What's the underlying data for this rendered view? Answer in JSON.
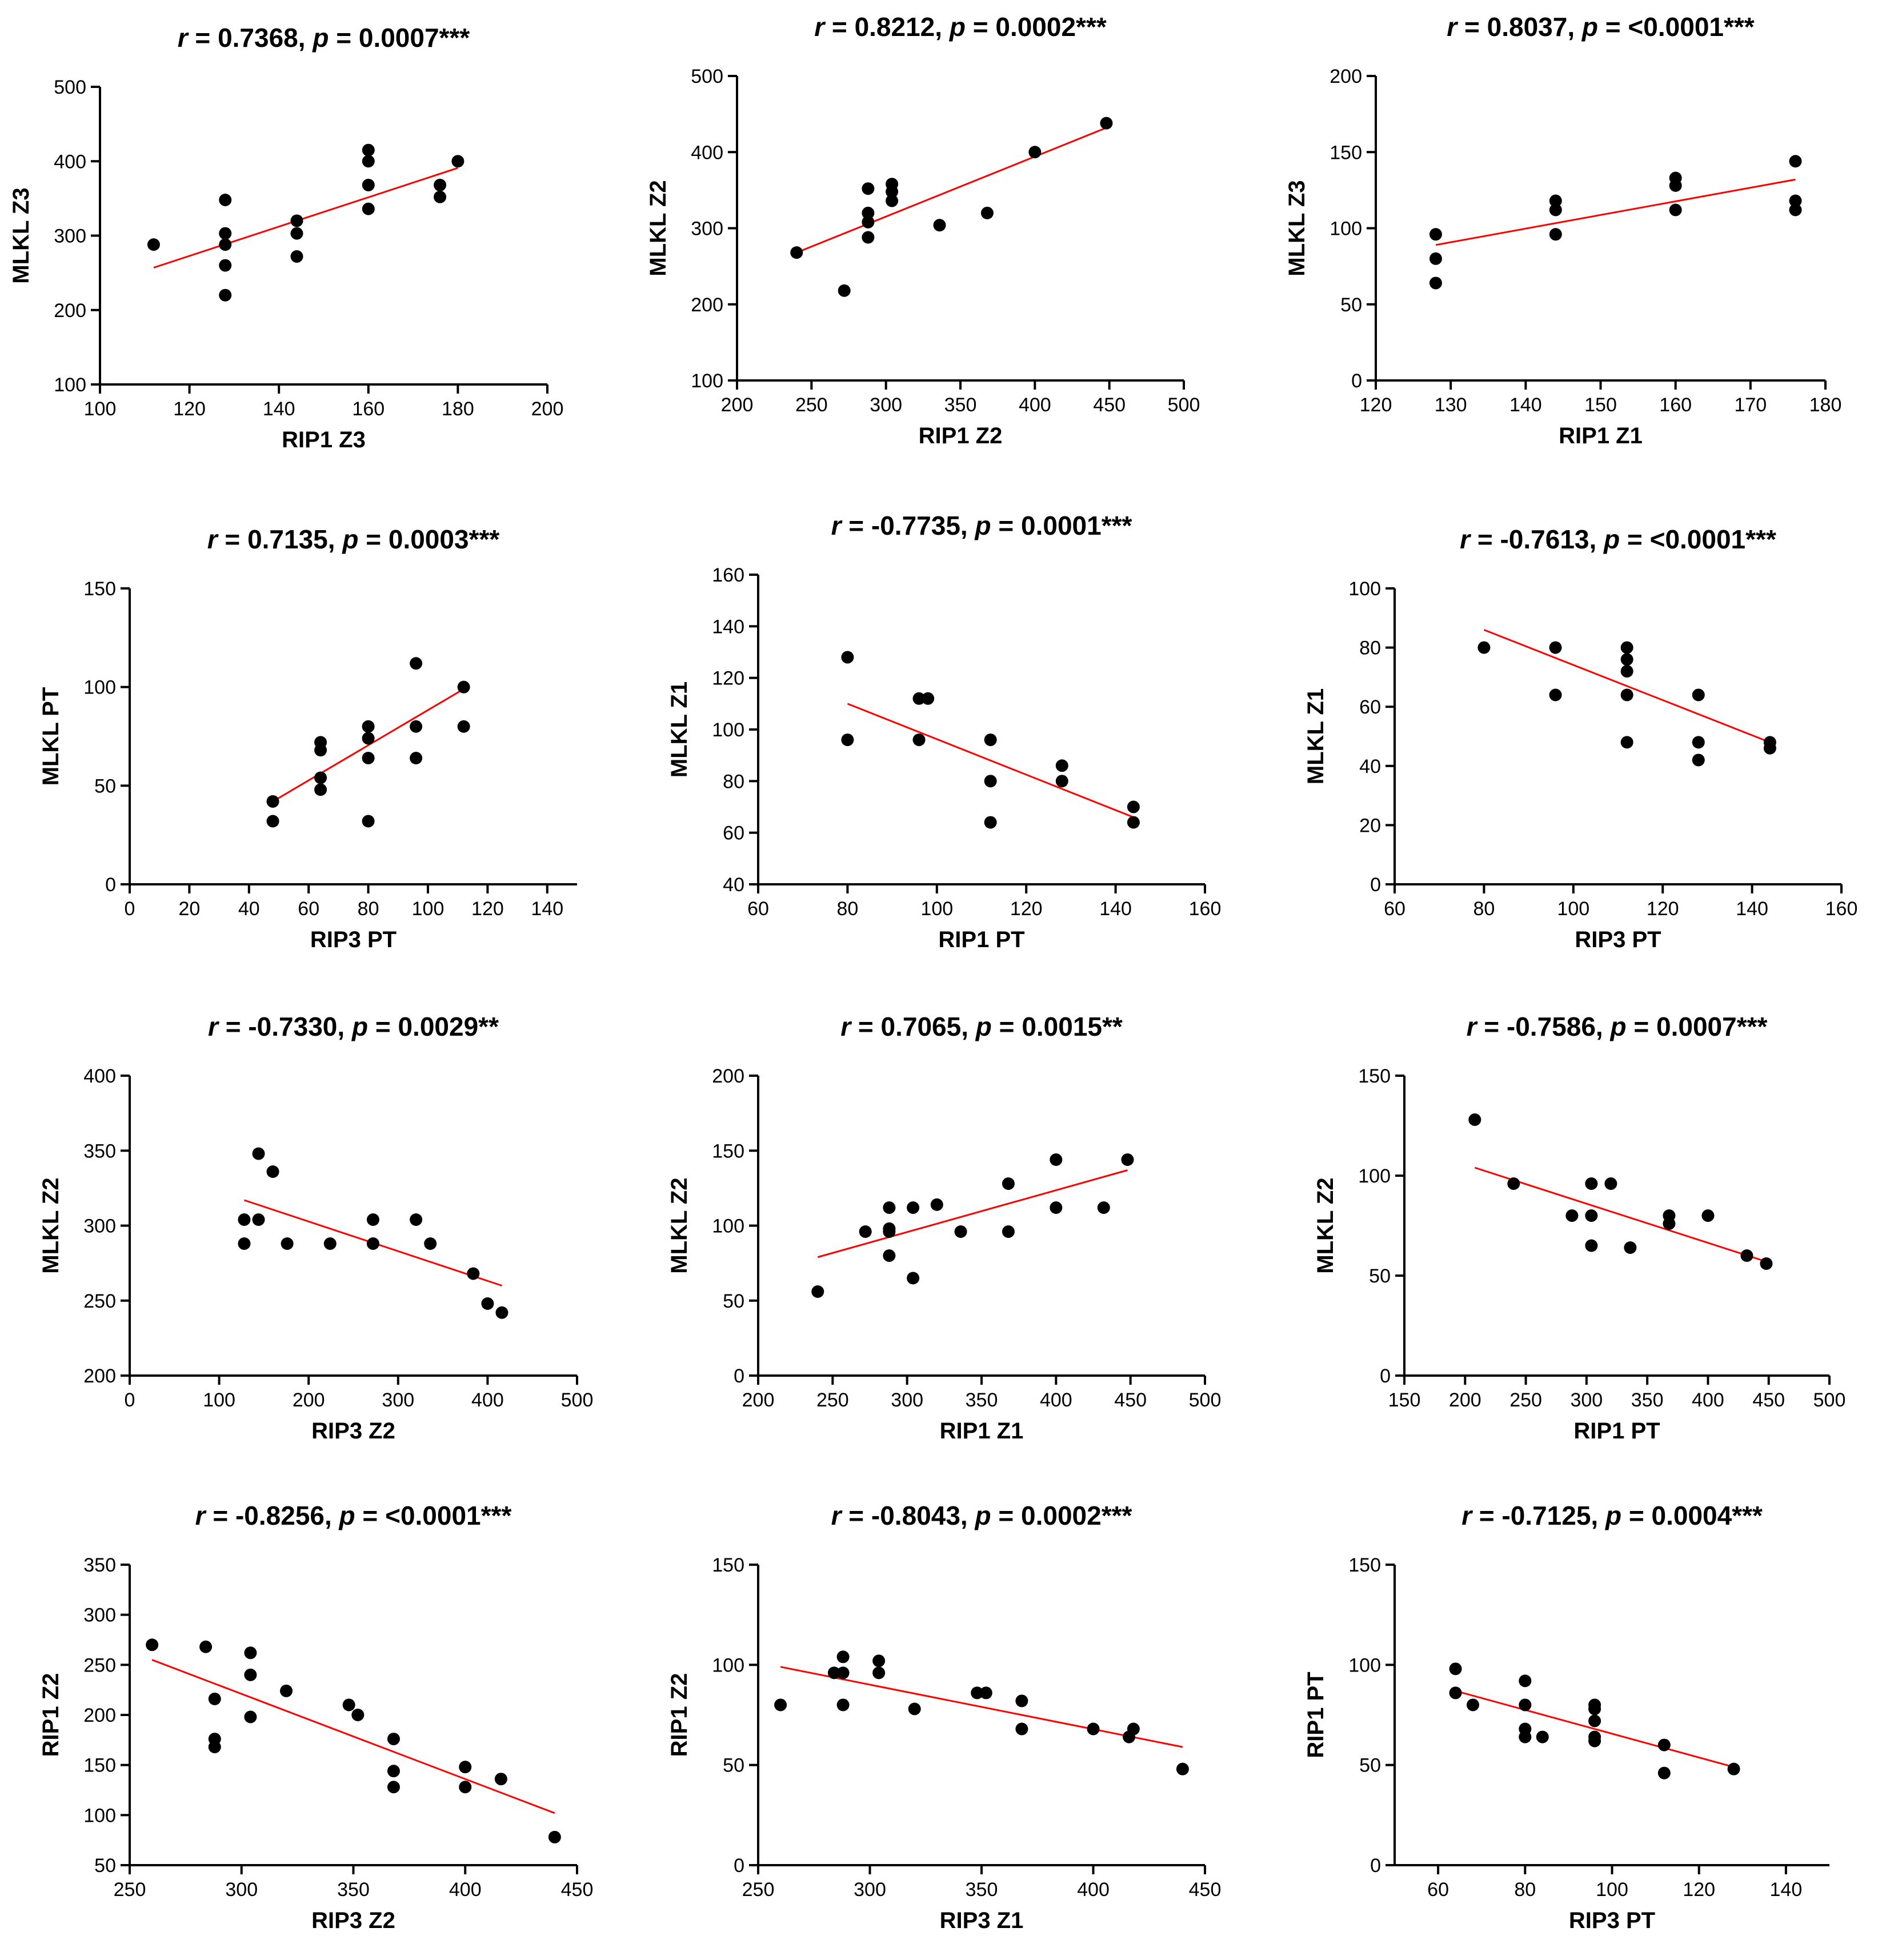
{
  "chart_data": [
    {
      "type": "scatter",
      "title": "r = 0.7368, p = 0.0007***",
      "title_parts": {
        "r_symbol": "r",
        "r_value": " = 0.7368, ",
        "p_symbol": "p",
        "p_value": " = 0.0007***"
      },
      "xlabel": "RIP1 Z3",
      "ylabel": "MLKL Z3",
      "xlim": [
        100,
        200
      ],
      "ylim": [
        100,
        500
      ],
      "xticks": [
        100,
        120,
        140,
        160,
        180,
        200
      ],
      "yticks": [
        100,
        200,
        300,
        400,
        500
      ],
      "points": [
        [
          112,
          288
        ],
        [
          128,
          348
        ],
        [
          128,
          303
        ],
        [
          128,
          288
        ],
        [
          128,
          260
        ],
        [
          128,
          220
        ],
        [
          144,
          320
        ],
        [
          144,
          303
        ],
        [
          144,
          272
        ],
        [
          160,
          415
        ],
        [
          160,
          400
        ],
        [
          160,
          368
        ],
        [
          160,
          336
        ],
        [
          176,
          368
        ],
        [
          176,
          352
        ],
        [
          180,
          400
        ]
      ],
      "fit": [
        [
          112,
          257
        ],
        [
          180,
          391
        ]
      ],
      "point_color": "#000000",
      "fit_color": "#ff0000",
      "grid": false,
      "legend": "none"
    },
    {
      "type": "scatter",
      "title": "r = 0.8212, p = 0.0002***",
      "title_parts": {
        "r_symbol": "r",
        "r_value": " = 0.8212, ",
        "p_symbol": "p",
        "p_value": " = 0.0002***"
      },
      "xlabel": "RIP1 Z2",
      "ylabel": "MLKL Z2",
      "xlim": [
        200,
        500
      ],
      "ylim": [
        100,
        500
      ],
      "xticks": [
        200,
        250,
        300,
        350,
        400,
        450,
        500
      ],
      "yticks": [
        100,
        200,
        300,
        400,
        500
      ],
      "points": [
        [
          240,
          268
        ],
        [
          272,
          218
        ],
        [
          288,
          352
        ],
        [
          288,
          320
        ],
        [
          288,
          308
        ],
        [
          288,
          288
        ],
        [
          304,
          358
        ],
        [
          304,
          348
        ],
        [
          304,
          336
        ],
        [
          336,
          304
        ],
        [
          368,
          320
        ],
        [
          400,
          400
        ],
        [
          448,
          438
        ]
      ],
      "fit": [
        [
          240,
          268
        ],
        [
          448,
          432
        ]
      ],
      "point_color": "#000000",
      "fit_color": "#ff0000",
      "grid": false,
      "legend": "none"
    },
    {
      "type": "scatter",
      "title": "r = 0.8037, p = <0.0001***",
      "title_parts": {
        "r_symbol": "r",
        "r_value": " = 0.8037, ",
        "p_symbol": "p",
        "p_value": " = <0.0001***"
      },
      "xlabel": "RIP1 Z1",
      "ylabel": "MLKL Z3",
      "xlim": [
        120,
        180
      ],
      "ylim": [
        0,
        200
      ],
      "xticks": [
        120,
        130,
        140,
        150,
        160,
        170,
        180
      ],
      "yticks": [
        0,
        50,
        100,
        150,
        200
      ],
      "points": [
        [
          128,
          96
        ],
        [
          128,
          80
        ],
        [
          128,
          64
        ],
        [
          144,
          118
        ],
        [
          144,
          112
        ],
        [
          144,
          96
        ],
        [
          160,
          133
        ],
        [
          160,
          128
        ],
        [
          160,
          112
        ],
        [
          176,
          144
        ],
        [
          176,
          118
        ],
        [
          176,
          112
        ]
      ],
      "fit": [
        [
          128,
          89
        ],
        [
          176,
          132
        ]
      ],
      "point_color": "#000000",
      "fit_color": "#ff0000",
      "grid": false,
      "legend": "none"
    },
    {
      "type": "scatter",
      "title": "r = 0.7135, p = 0.0003***",
      "title_parts": {
        "r_symbol": "r",
        "r_value": " = 0.7135, ",
        "p_symbol": "p",
        "p_value": " = 0.0003***"
      },
      "xlabel": "RIP3 PT",
      "ylabel": "MLKL PT",
      "xlim": [
        0,
        150
      ],
      "ylim": [
        0,
        150
      ],
      "xticks": [
        0,
        20,
        40,
        60,
        80,
        100,
        120,
        140
      ],
      "yticks": [
        0,
        50,
        100,
        150
      ],
      "points": [
        [
          48,
          42
        ],
        [
          48,
          32
        ],
        [
          64,
          72
        ],
        [
          64,
          68
        ],
        [
          64,
          54
        ],
        [
          64,
          48
        ],
        [
          80,
          80
        ],
        [
          80,
          74
        ],
        [
          80,
          64
        ],
        [
          80,
          32
        ],
        [
          96,
          112
        ],
        [
          96,
          80
        ],
        [
          96,
          64
        ],
        [
          112,
          100
        ],
        [
          112,
          80
        ]
      ],
      "fit": [
        [
          48,
          42
        ],
        [
          112,
          99
        ]
      ],
      "point_color": "#000000",
      "fit_color": "#ff0000",
      "grid": false,
      "legend": "none"
    },
    {
      "type": "scatter",
      "title": "r = -0.7735, p = 0.0001***",
      "title_parts": {
        "r_symbol": "r",
        "r_value": " = -0.7735, ",
        "p_symbol": "p",
        "p_value": " = 0.0001***"
      },
      "xlabel": "RIP1 PT",
      "ylabel": "MLKL Z1",
      "xlim": [
        60,
        160
      ],
      "ylim": [
        40,
        160
      ],
      "xticks": [
        60,
        80,
        100,
        120,
        140,
        160
      ],
      "yticks": [
        40,
        60,
        80,
        100,
        120,
        140,
        160
      ],
      "points": [
        [
          80,
          128
        ],
        [
          80,
          96
        ],
        [
          96,
          112
        ],
        [
          96,
          96
        ],
        [
          98,
          112
        ],
        [
          112,
          96
        ],
        [
          112,
          80
        ],
        [
          112,
          64
        ],
        [
          128,
          86
        ],
        [
          128,
          80
        ],
        [
          144,
          70
        ],
        [
          144,
          64
        ]
      ],
      "fit": [
        [
          80,
          110
        ],
        [
          144,
          66
        ]
      ],
      "point_color": "#000000",
      "fit_color": "#ff0000",
      "grid": false,
      "legend": "none"
    },
    {
      "type": "scatter",
      "title": "r = -0.7613, p = <0.0001***",
      "title_parts": {
        "r_symbol": "r",
        "r_value": " = -0.7613, ",
        "p_symbol": "p",
        "p_value": " = <0.0001***"
      },
      "xlabel": "RIP3 PT",
      "ylabel": "MLKL Z1",
      "xlim": [
        60,
        160
      ],
      "ylim": [
        0,
        100
      ],
      "xticks": [
        60,
        80,
        100,
        120,
        140,
        160
      ],
      "yticks": [
        0,
        20,
        40,
        60,
        80,
        100
      ],
      "points": [
        [
          80,
          80
        ],
        [
          96,
          80
        ],
        [
          96,
          64
        ],
        [
          112,
          80
        ],
        [
          112,
          76
        ],
        [
          112,
          72
        ],
        [
          112,
          64
        ],
        [
          112,
          48
        ],
        [
          128,
          64
        ],
        [
          128,
          48
        ],
        [
          128,
          42
        ],
        [
          144,
          48
        ],
        [
          144,
          46
        ]
      ],
      "fit": [
        [
          80,
          86
        ],
        [
          144,
          48
        ]
      ],
      "point_color": "#000000",
      "fit_color": "#ff0000",
      "grid": false,
      "legend": "none"
    },
    {
      "type": "scatter",
      "title": "r = -0.7330, p = 0.0029**",
      "title_parts": {
        "r_symbol": "r",
        "r_value": " = -0.7330, ",
        "p_symbol": "p",
        "p_value": " = 0.0029**"
      },
      "xlabel": "RIP3 Z2",
      "ylabel": "MLKL Z2",
      "xlim": [
        0,
        500
      ],
      "ylim": [
        200,
        400
      ],
      "xticks": [
        0,
        100,
        200,
        300,
        400,
        500
      ],
      "yticks": [
        200,
        250,
        300,
        350,
        400
      ],
      "points": [
        [
          128,
          304
        ],
        [
          128,
          288
        ],
        [
          144,
          348
        ],
        [
          144,
          304
        ],
        [
          160,
          336
        ],
        [
          176,
          288
        ],
        [
          224,
          288
        ],
        [
          272,
          304
        ],
        [
          272,
          288
        ],
        [
          320,
          304
        ],
        [
          336,
          288
        ],
        [
          384,
          268
        ],
        [
          400,
          248
        ],
        [
          416,
          242
        ]
      ],
      "fit": [
        [
          128,
          317
        ],
        [
          416,
          260
        ]
      ],
      "point_color": "#000000",
      "fit_color": "#ff0000",
      "grid": false,
      "legend": "none"
    },
    {
      "type": "scatter",
      "title": "r = 0.7065, p = 0.0015**",
      "title_parts": {
        "r_symbol": "r",
        "r_value": " = 0.7065, ",
        "p_symbol": "p",
        "p_value": " = 0.0015**"
      },
      "xlabel": "RIP1 Z1",
      "ylabel": "MLKL Z2",
      "xlim": [
        200,
        500
      ],
      "ylim": [
        0,
        200
      ],
      "xticks": [
        200,
        250,
        300,
        350,
        400,
        450,
        500
      ],
      "yticks": [
        0,
        50,
        100,
        150,
        200
      ],
      "points": [
        [
          240,
          56
        ],
        [
          272,
          96
        ],
        [
          288,
          112
        ],
        [
          288,
          98
        ],
        [
          288,
          96
        ],
        [
          288,
          80
        ],
        [
          304,
          112
        ],
        [
          304,
          65
        ],
        [
          320,
          114
        ],
        [
          336,
          96
        ],
        [
          368,
          128
        ],
        [
          368,
          96
        ],
        [
          400,
          144
        ],
        [
          400,
          112
        ],
        [
          432,
          112
        ],
        [
          448,
          144
        ]
      ],
      "fit": [
        [
          240,
          79
        ],
        [
          448,
          137
        ]
      ],
      "point_color": "#000000",
      "fit_color": "#ff0000",
      "grid": false,
      "legend": "none"
    },
    {
      "type": "scatter",
      "title": "r = -0.7586, p = 0.0007***",
      "title_parts": {
        "r_symbol": "r",
        "r_value": " = -0.7586, ",
        "p_symbol": "p",
        "p_value": " = 0.0007***"
      },
      "xlabel": "RIP1 PT",
      "ylabel": "MLKL Z2",
      "xlim": [
        150,
        500
      ],
      "ylim": [
        0,
        150
      ],
      "xticks": [
        150,
        200,
        250,
        300,
        350,
        400,
        450,
        500
      ],
      "yticks": [
        0,
        50,
        100,
        150
      ],
      "points": [
        [
          208,
          128
        ],
        [
          240,
          96
        ],
        [
          288,
          80
        ],
        [
          304,
          96
        ],
        [
          304,
          80
        ],
        [
          304,
          65
        ],
        [
          320,
          96
        ],
        [
          336,
          64
        ],
        [
          368,
          80
        ],
        [
          368,
          76
        ],
        [
          400,
          80
        ],
        [
          432,
          60
        ],
        [
          448,
          56
        ]
      ],
      "fit": [
        [
          208,
          104
        ],
        [
          448,
          57
        ]
      ],
      "point_color": "#000000",
      "fit_color": "#ff0000",
      "grid": false,
      "legend": "none"
    },
    {
      "type": "scatter",
      "title": "r = -0.8256, p = <0.0001***",
      "title_parts": {
        "r_symbol": "r",
        "r_value": " = -0.8256, ",
        "p_symbol": "p",
        "p_value": " = <0.0001***"
      },
      "xlabel": "RIP3 Z2",
      "ylabel": "RIP1 Z2",
      "xlim": [
        250,
        450
      ],
      "ylim": [
        50,
        350
      ],
      "xticks": [
        250,
        300,
        350,
        400,
        450
      ],
      "yticks": [
        50,
        100,
        150,
        200,
        250,
        300,
        350
      ],
      "points": [
        [
          260,
          270
        ],
        [
          284,
          268
        ],
        [
          288,
          216
        ],
        [
          288,
          176
        ],
        [
          288,
          168
        ],
        [
          304,
          262
        ],
        [
          304,
          240
        ],
        [
          304,
          198
        ],
        [
          320,
          224
        ],
        [
          348,
          210
        ],
        [
          352,
          200
        ],
        [
          368,
          176
        ],
        [
          368,
          144
        ],
        [
          368,
          128
        ],
        [
          400,
          148
        ],
        [
          400,
          128
        ],
        [
          416,
          136
        ],
        [
          440,
          78
        ]
      ],
      "fit": [
        [
          260,
          255
        ],
        [
          440,
          102
        ]
      ],
      "point_color": "#000000",
      "fit_color": "#ff0000",
      "grid": false,
      "legend": "none"
    },
    {
      "type": "scatter",
      "title": "r = -0.8043, p = 0.0002***",
      "title_parts": {
        "r_symbol": "r",
        "r_value": " = -0.8043, ",
        "p_symbol": "p",
        "p_value": " = 0.0002***"
      },
      "xlabel": "RIP3 Z1",
      "ylabel": "RIP1 Z2",
      "xlim": [
        250,
        450
      ],
      "ylim": [
        0,
        150
      ],
      "xticks": [
        250,
        300,
        350,
        400,
        450
      ],
      "yticks": [
        0,
        50,
        100,
        150
      ],
      "points": [
        [
          260,
          80
        ],
        [
          284,
          96
        ],
        [
          288,
          104
        ],
        [
          288,
          96
        ],
        [
          288,
          80
        ],
        [
          304,
          102
        ],
        [
          304,
          96
        ],
        [
          320,
          78
        ],
        [
          348,
          86
        ],
        [
          352,
          86
        ],
        [
          368,
          82
        ],
        [
          368,
          68
        ],
        [
          400,
          68
        ],
        [
          416,
          64
        ],
        [
          418,
          68
        ],
        [
          440,
          48
        ]
      ],
      "fit": [
        [
          260,
          99
        ],
        [
          440,
          59
        ]
      ],
      "point_color": "#000000",
      "fit_color": "#ff0000",
      "grid": false,
      "legend": "none"
    },
    {
      "type": "scatter",
      "title": "r = -0.7125, p = 0.0004***",
      "title_parts": {
        "r_symbol": "r",
        "r_value": " = -0.7125, ",
        "p_symbol": "p",
        "p_value": " = 0.0004***"
      },
      "xlabel": "RIP3 PT",
      "ylabel": "RIP1 PT",
      "xlim": [
        50,
        150
      ],
      "ylim": [
        0,
        150
      ],
      "xticks": [
        60,
        80,
        100,
        120,
        140
      ],
      "yticks": [
        0,
        50,
        100,
        150
      ],
      "points": [
        [
          64,
          98
        ],
        [
          64,
          86
        ],
        [
          68,
          80
        ],
        [
          80,
          92
        ],
        [
          80,
          80
        ],
        [
          80,
          68
        ],
        [
          80,
          64
        ],
        [
          84,
          64
        ],
        [
          96,
          80
        ],
        [
          96,
          78
        ],
        [
          96,
          72
        ],
        [
          96,
          64
        ],
        [
          96,
          62
        ],
        [
          112,
          60
        ],
        [
          112,
          46
        ],
        [
          128,
          48
        ]
      ],
      "fit": [
        [
          64,
          87
        ],
        [
          128,
          49
        ]
      ],
      "point_color": "#000000",
      "fit_color": "#ff0000",
      "grid": false,
      "legend": "none"
    }
  ]
}
